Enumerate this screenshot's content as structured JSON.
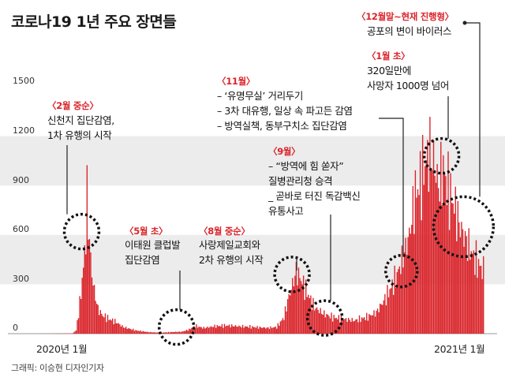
{
  "title": "코로나19 1년 주요 장면들",
  "credit": "그래픽: 이승현 디자인기자",
  "colors": {
    "bar": "#d9252b",
    "band": "#ececec",
    "annotation_date": "#d9252b",
    "leader": "#222222"
  },
  "chart_data": {
    "type": "bar",
    "title": "코로나19 1년 주요 장면들",
    "ylim": [
      0,
      1500
    ],
    "y_ticks": [
      "0",
      "300",
      "600",
      "900",
      "1200",
      "1500"
    ],
    "x_ticks": [
      "2020년 1월",
      "2021년 1월"
    ],
    "x_range_days": 366,
    "grid": "alternating horizontal bands",
    "legend": "none",
    "series_profile": [
      [
        0,
        0
      ],
      [
        28,
        2
      ],
      [
        31,
        20
      ],
      [
        34,
        180
      ],
      [
        37,
        400
      ],
      [
        39,
        600
      ],
      [
        40,
        820
      ],
      [
        42,
        560
      ],
      [
        44,
        360
      ],
      [
        46,
        260
      ],
      [
        49,
        150
      ],
      [
        53,
        110
      ],
      [
        58,
        90
      ],
      [
        64,
        70
      ],
      [
        70,
        40
      ],
      [
        80,
        20
      ],
      [
        90,
        10
      ],
      [
        100,
        6
      ],
      [
        110,
        10
      ],
      [
        118,
        12
      ],
      [
        124,
        25
      ],
      [
        126,
        35
      ],
      [
        130,
        45
      ],
      [
        136,
        35
      ],
      [
        145,
        45
      ],
      [
        155,
        50
      ],
      [
        165,
        45
      ],
      [
        178,
        40
      ],
      [
        188,
        35
      ],
      [
        196,
        40
      ],
      [
        202,
        100
      ],
      [
        205,
        200
      ],
      [
        209,
        300
      ],
      [
        212,
        380
      ],
      [
        216,
        330
      ],
      [
        221,
        250
      ],
      [
        227,
        160
      ],
      [
        235,
        120
      ],
      [
        242,
        100
      ],
      [
        250,
        90
      ],
      [
        260,
        80
      ],
      [
        270,
        100
      ],
      [
        278,
        130
      ],
      [
        284,
        200
      ],
      [
        290,
        280
      ],
      [
        294,
        340
      ],
      [
        298,
        420
      ],
      [
        302,
        520
      ],
      [
        305,
        600
      ],
      [
        307,
        700
      ],
      [
        310,
        850
      ],
      [
        313,
        900
      ],
      [
        316,
        980
      ],
      [
        319,
        1050
      ],
      [
        322,
        1100
      ],
      [
        325,
        1050
      ],
      [
        329,
        900
      ],
      [
        333,
        1000
      ],
      [
        337,
        880
      ],
      [
        342,
        780
      ],
      [
        347,
        650
      ],
      [
        352,
        560
      ],
      [
        357,
        480
      ],
      [
        362,
        420
      ],
      [
        366,
        380
      ]
    ]
  },
  "annotations": [
    {
      "id": "shincheonji",
      "date": "〈2월 중순〉",
      "lines": [
        "신천지 집단감염,",
        "1차 유행의 시작"
      ]
    },
    {
      "id": "club",
      "date": "〈5월 초〉",
      "lines": [
        "이태원 클럽발",
        "집단감염"
      ]
    },
    {
      "id": "sarang",
      "date": "〈8월 중순〉",
      "lines": [
        "사랑제일교회와",
        "2차 유행의 시작"
      ]
    },
    {
      "id": "sep",
      "date": "〈9월〉",
      "lines": [
        "– “방역에 힘 쏟자”",
        "   질병관리청 승격",
        "_ 곧바로 터진 독감백신",
        "   유통사고"
      ]
    },
    {
      "id": "nov",
      "date": "〈11월〉",
      "lines": [
        "– ‘유명무실’ 거리두기",
        "– 3차 대유행, 일상 속 파고든 감염",
        "– 방역실책, 동부구치소 집단감염"
      ]
    },
    {
      "id": "jan",
      "date": "〈1월 초〉",
      "lines": [
        "320일만에",
        "사망자 1000명 넘어"
      ]
    },
    {
      "id": "now",
      "date": "〈12월말~현재 진행형〉",
      "lines": [
        "공포의 변이 바이러스"
      ]
    }
  ]
}
